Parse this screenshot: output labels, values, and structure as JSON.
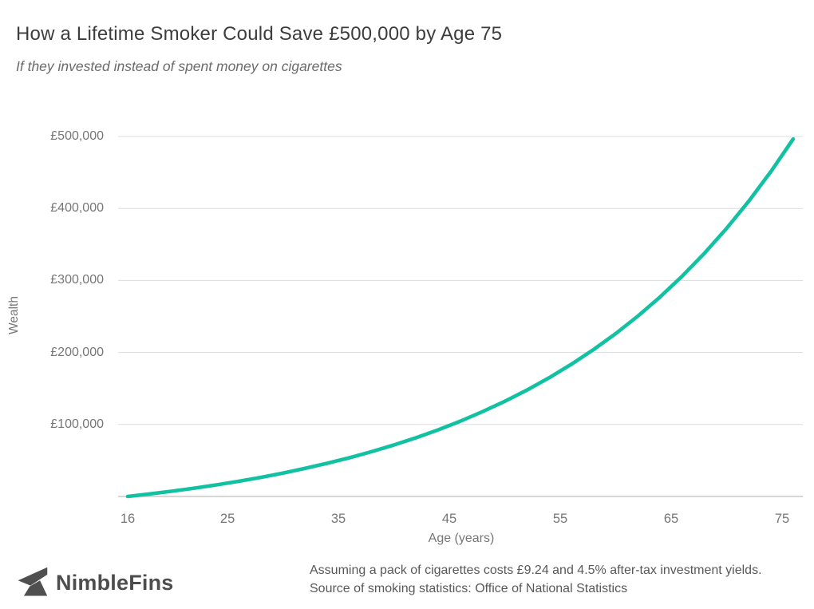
{
  "chart_data": {
    "type": "line",
    "title": "How a Lifetime Smoker Could Save £500,000 by Age 75",
    "subtitle": "If they invested instead of spent money on cigarettes",
    "xlabel": "Age (years)",
    "ylabel": "Wealth",
    "xlim": [
      15.1,
      76.9
    ],
    "ylim": [
      0,
      500000
    ],
    "grid": true,
    "legend_position": "none",
    "line_color": "#12c1a2",
    "gridline_color": "#dcdcdc",
    "axis_line_color": "#c9c9c9",
    "x_ticks": [
      16,
      25,
      35,
      45,
      55,
      65,
      75
    ],
    "y_ticks": [
      {
        "value": 100000,
        "label": "£100,000"
      },
      {
        "value": 200000,
        "label": "£200,000"
      },
      {
        "value": 300000,
        "label": "£300,000"
      },
      {
        "value": 400000,
        "label": "£400,000"
      },
      {
        "value": 500000,
        "label": "£500,000"
      }
    ],
    "series": [
      {
        "name": "Wealth",
        "x": [
          16,
          18,
          20,
          22,
          24,
          26,
          28,
          30,
          32,
          34,
          36,
          38,
          40,
          42,
          44,
          46,
          48,
          50,
          52,
          54,
          56,
          58,
          60,
          62,
          64,
          66,
          68,
          70,
          72,
          74,
          76
        ],
        "y": [
          0,
          3500,
          7300,
          11500,
          16100,
          21100,
          26500,
          32500,
          39000,
          46100,
          53800,
          62300,
          71500,
          81600,
          92600,
          104600,
          117800,
          132100,
          147800,
          164900,
          183600,
          204000,
          226200,
          250600,
          277100,
          306100,
          337800,
          372400,
          410200,
          451400,
          496500
        ]
      }
    ]
  },
  "footer": {
    "logo_text": "NimbleFins",
    "note_line1": "Assuming a pack of cigarettes costs £9.24 and 4.5% after-tax investment yields.",
    "note_line2": "Source of smoking statistics: Office of National Statistics"
  }
}
